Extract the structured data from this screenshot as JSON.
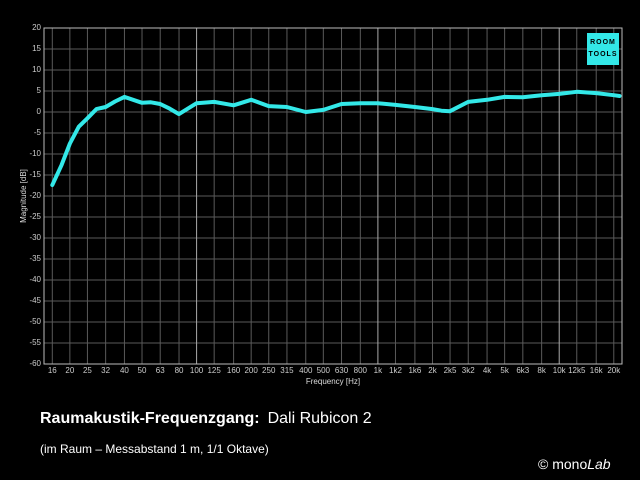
{
  "chart_data": {
    "type": "line",
    "title": "Raumakustik-Frequenzgang:",
    "model": "Dali Rubicon 2",
    "note": "(im Raum – Messabstand 1 m, 1/1 Oktave)",
    "credit_prefix": "© mono",
    "credit_suffix": "Lab",
    "logo": [
      "ROOM",
      "TOOLS"
    ],
    "xlabel": "Frequency [Hz]",
    "ylabel": "Magnitude [dB]",
    "log_x": true,
    "grid": true,
    "color": "#33e8e8",
    "x": [
      16,
      18,
      20,
      22.4,
      25,
      28,
      31.5,
      35.5,
      40,
      50,
      56,
      63,
      71,
      80,
      100,
      125,
      160,
      200,
      250,
      315,
      400,
      500,
      630,
      800,
      1000,
      1250,
      1600,
      2000,
      2240,
      2500,
      3150,
      4000,
      5000,
      6300,
      8000,
      10000,
      12500,
      16000,
      20000,
      21500
    ],
    "values": [
      -17.4,
      -12.6,
      -7.5,
      -3.5,
      -1.5,
      0.7,
      1.2,
      2.5,
      3.6,
      2.2,
      2.3,
      1.9,
      0.8,
      -0.5,
      2.1,
      2.4,
      1.6,
      2.9,
      1.4,
      1.2,
      0.0,
      0.5,
      1.9,
      2.1,
      2.1,
      1.7,
      1.2,
      0.7,
      0.3,
      0.2,
      2.4,
      2.9,
      3.6,
      3.5,
      4.0,
      4.3,
      4.8,
      4.5,
      4.0,
      3.8
    ],
    "xlim": [
      14.4,
      22200
    ],
    "xticks": [
      16,
      20,
      25,
      {
        "value": 31.5,
        "label": "32"
      },
      40,
      50,
      63,
      80,
      100,
      125,
      160,
      200,
      250,
      315,
      400,
      500,
      630,
      800,
      {
        "value": 1000,
        "label": "1k"
      },
      {
        "value": 1250,
        "label": "1k2"
      },
      {
        "value": 1600,
        "label": "1k6"
      },
      {
        "value": 2000,
        "label": "2k"
      },
      {
        "value": 2500,
        "label": "2k5"
      },
      {
        "value": 3150,
        "label": "3k2"
      },
      {
        "value": 4000,
        "label": "4k"
      },
      {
        "value": 5000,
        "label": "5k"
      },
      {
        "value": 6300,
        "label": "6k3"
      },
      {
        "value": 8000,
        "label": "8k"
      },
      {
        "value": 10000,
        "label": "10k"
      },
      {
        "value": 12500,
        "label": "12k5"
      },
      {
        "value": 16000,
        "label": "16k"
      },
      {
        "value": 20000,
        "label": "20k"
      }
    ],
    "ylim": [
      -60,
      20
    ],
    "yticks": [
      20,
      15,
      10,
      5,
      0,
      -5,
      -10,
      -15,
      -20,
      -25,
      -30,
      -35,
      -40,
      -45,
      -50,
      -55,
      -60
    ]
  }
}
